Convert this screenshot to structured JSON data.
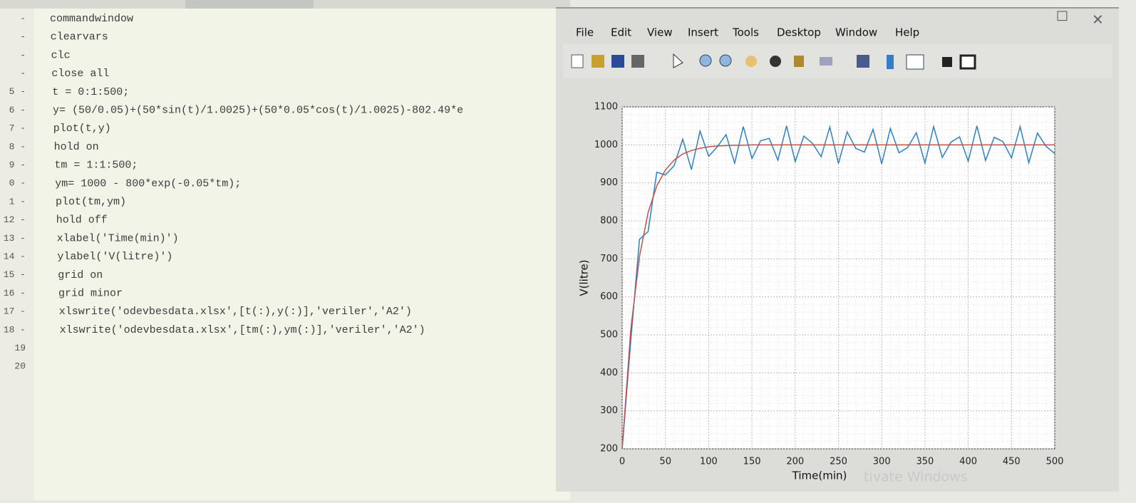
{
  "editor": {
    "lines": [
      {
        "gutter": "-",
        "code": "commandwindow"
      },
      {
        "gutter": "-",
        "code": "clearvars"
      },
      {
        "gutter": "-",
        "code": "clc"
      },
      {
        "gutter": "-",
        "code": "close all"
      },
      {
        "gutter": "5 -",
        "code": "t = 0:1:500;"
      },
      {
        "gutter": "6 -",
        "code": "y= (50/0.05)+(50*sin(t)/1.0025)+(50*0.05*cos(t)/1.0025)-802.49*e"
      },
      {
        "gutter": "7 -",
        "code": "plot(t,y)"
      },
      {
        "gutter": "8 -",
        "code": "hold on"
      },
      {
        "gutter": "9 -",
        "code": "tm = 1:1:500;"
      },
      {
        "gutter": "0 -",
        "code": "ym= 1000 - 800*exp(-0.05*tm);"
      },
      {
        "gutter": "1 -",
        "code": "plot(tm,ym)"
      },
      {
        "gutter": "12 -",
        "code": "hold off"
      },
      {
        "gutter": "13 -",
        "code": "xlabel('Time(min)')"
      },
      {
        "gutter": "14 -",
        "code": "ylabel('V(litre)')"
      },
      {
        "gutter": "15 -",
        "code": "grid on"
      },
      {
        "gutter": "16 -",
        "code": "grid minor"
      },
      {
        "gutter": "17 -",
        "code": "xlswrite('odevbesdata.xlsx',[t(:),y(:)],'veriler','A2')"
      },
      {
        "gutter": "18 -",
        "code": "xlswrite('odevbesdata.xlsx',[tm(:),ym(:)],'veriler','A2')"
      },
      {
        "gutter": "19"
      },
      {
        "gutter": "20"
      }
    ]
  },
  "figure": {
    "menu": [
      "File",
      "Edit",
      "View",
      "Insert",
      "Tools",
      "Desktop",
      "Window",
      "Help"
    ],
    "watermark": "tivate Windows"
  },
  "chart_data": {
    "type": "line",
    "xlabel": "Time(min)",
    "ylabel": "V(litre)",
    "x": [
      0,
      10,
      20,
      30,
      40,
      50,
      60,
      70,
      80,
      90,
      100,
      110,
      120,
      130,
      140,
      150,
      160,
      170,
      180,
      190,
      200,
      210,
      220,
      230,
      240,
      250,
      260,
      270,
      280,
      290,
      300,
      310,
      320,
      330,
      340,
      350,
      360,
      370,
      380,
      390,
      400,
      410,
      420,
      430,
      440,
      450,
      460,
      470,
      480,
      490,
      500
    ],
    "series": [
      {
        "color": "#2f7fc1",
        "values": [
          200,
          486,
          751,
          772,
          928,
          921,
          945,
          1015,
          935,
          1036,
          970,
          995,
          1027,
          952,
          1048,
          964,
          1011,
          1017,
          960,
          1050,
          956,
          1023,
          1004,
          969,
          1047,
          951,
          1034,
          991,
          981,
          1041,
          950,
          1043,
          979,
          993,
          1032,
          952,
          1048,
          967,
          1007,
          1021,
          957,
          1050,
          959,
          1020,
          1009,
          966,
          1048,
          953,
          1031,
          996,
          977
        ]
      },
      {
        "color": "#c0504d",
        "values": [
          200,
          515,
          706,
          822,
          892,
          934,
          960,
          976,
          985,
          991,
          995,
          997,
          998,
          999,
          999,
          1000,
          1000,
          1000,
          1000,
          1000,
          1000,
          1000,
          1000,
          1000,
          1000,
          1000,
          1000,
          1000,
          1000,
          1000,
          1000,
          1000,
          1000,
          1000,
          1000,
          1000,
          1000,
          1000,
          1000,
          1000,
          1000,
          1000,
          1000,
          1000,
          1000,
          1000,
          1000,
          1000,
          1000,
          1000,
          1000
        ]
      }
    ],
    "xlim": [
      0,
      500
    ],
    "ylim": [
      200,
      1100
    ],
    "xticks": [
      0,
      50,
      100,
      150,
      200,
      250,
      300,
      350,
      400,
      450,
      500
    ],
    "yticks": [
      200,
      300,
      400,
      500,
      600,
      700,
      800,
      900,
      1000,
      1100
    ],
    "grid": true,
    "minor_grid": true
  }
}
